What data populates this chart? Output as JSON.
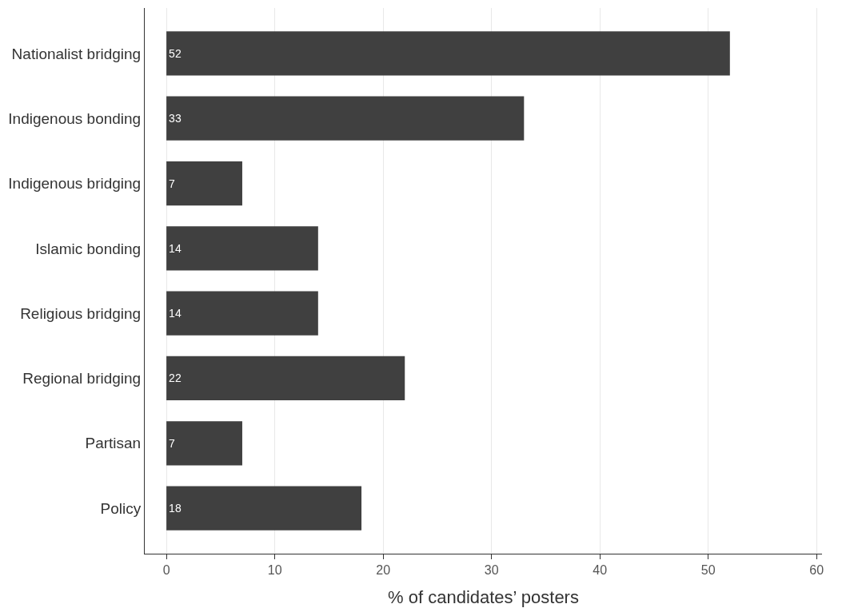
{
  "chart_data": {
    "type": "bar",
    "orientation": "horizontal",
    "xlabel": "% of candidates’ posters",
    "categories": [
      "Nationalist bridging",
      "Indigenous bonding",
      "Indigenous bridging",
      "Islamic bonding",
      "Religious bridging",
      "Regional bridging",
      "Partisan",
      "Policy"
    ],
    "values": [
      52,
      33,
      7,
      14,
      14,
      22,
      7,
      18
    ],
    "color": "#404040",
    "data_labels": true,
    "xlim": [
      -2,
      60.5
    ],
    "xticks": [
      0,
      10,
      20,
      30,
      40,
      50,
      60
    ],
    "grid": "x"
  }
}
